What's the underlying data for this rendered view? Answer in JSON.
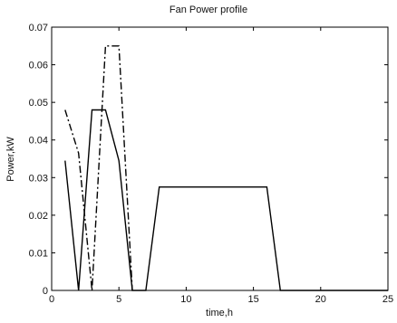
{
  "chart_data": {
    "type": "line",
    "title": "Fan Power profile",
    "xlabel": "time,h",
    "ylabel": "Power,kW",
    "xlim": [
      0,
      25
    ],
    "ylim": [
      0,
      0.07
    ],
    "xticks": [
      "0",
      "5",
      "10",
      "15",
      "20",
      "25"
    ],
    "yticks": [
      "0",
      "0.01",
      "0.02",
      "0.03",
      "0.04",
      "0.05",
      "0.06",
      "0.07"
    ],
    "grid": false,
    "series": [
      {
        "style": "solid",
        "color": "#000000",
        "x": [
          1,
          2,
          3,
          4,
          5,
          6,
          7,
          8,
          16,
          17,
          25
        ],
        "y": [
          0.0345,
          0.0,
          0.048,
          0.048,
          0.0345,
          0.0,
          0.0,
          0.0275,
          0.0275,
          0.0,
          0.0
        ]
      },
      {
        "style": "dash-dot",
        "color": "#000000",
        "x": [
          1,
          2,
          3,
          4,
          5,
          6
        ],
        "y": [
          0.048,
          0.0365,
          0.0,
          0.065,
          0.065,
          0.0
        ]
      }
    ]
  }
}
